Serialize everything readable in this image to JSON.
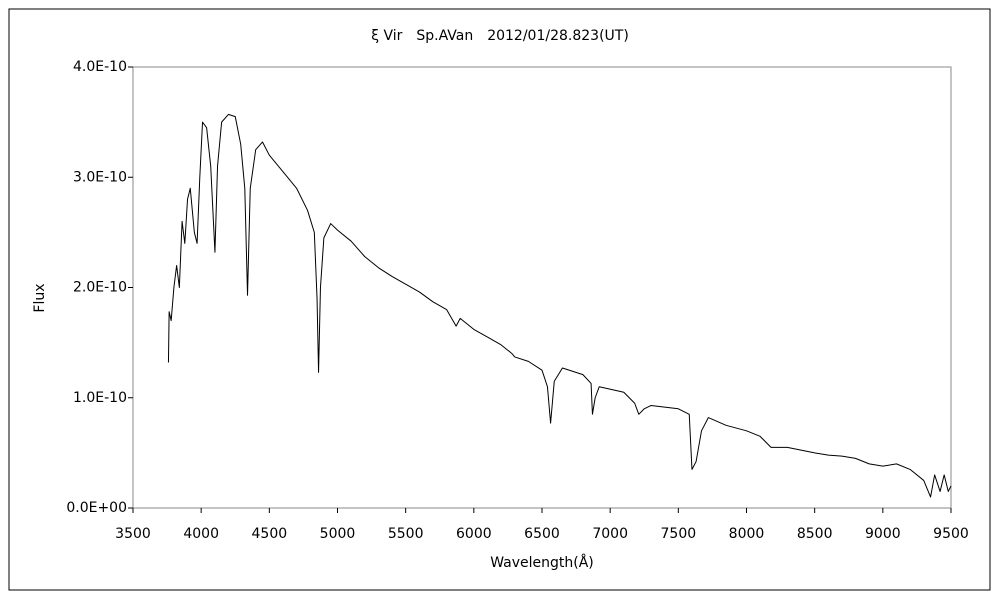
{
  "chart_data": {
    "type": "line",
    "title": "ξ Vir　Sp.AVan　2012/01/28.823(UT)",
    "x_label": "Wavelength(Å)",
    "y_label": "Flux",
    "xlim": [
      3500,
      9500
    ],
    "xticks": [
      3500,
      4000,
      4500,
      5000,
      5500,
      6000,
      6500,
      7000,
      7500,
      8000,
      8500,
      9000,
      9500
    ],
    "ylim": [
      0,
      4e-10
    ],
    "yticks": [
      {
        "value": 0,
        "label": "0.0E+00"
      },
      {
        "value": 1e-10,
        "label": "1.0E-10"
      },
      {
        "value": 2e-10,
        "label": "2.0E-10"
      },
      {
        "value": 3e-10,
        "label": "3.0E-10"
      },
      {
        "value": 4e-10,
        "label": "4.0E-10"
      }
    ],
    "grid": false,
    "series": [
      {
        "name": "Flux",
        "color": "#000000",
        "x": [
          3760,
          3765,
          3780,
          3800,
          3820,
          3840,
          3860,
          3880,
          3900,
          3920,
          3950,
          3970,
          3990,
          4010,
          4040,
          4070,
          4101,
          4120,
          4150,
          4200,
          4250,
          4290,
          4320,
          4340,
          4360,
          4400,
          4450,
          4500,
          4600,
          4700,
          4780,
          4830,
          4850,
          4861,
          4875,
          4900,
          4950,
          5000,
          5100,
          5200,
          5300,
          5400,
          5500,
          5600,
          5700,
          5800,
          5870,
          5900,
          6000,
          6100,
          6200,
          6280,
          6300,
          6400,
          6500,
          6540,
          6563,
          6590,
          6650,
          6800,
          6860,
          6870,
          6890,
          6920,
          7100,
          7180,
          7210,
          7250,
          7300,
          7500,
          7580,
          7600,
          7630,
          7670,
          7720,
          7850,
          8000,
          8100,
          8180,
          8300,
          8500,
          8600,
          8700,
          8800,
          8900,
          9000,
          9100,
          9200,
          9300,
          9350,
          9380,
          9420,
          9450,
          9480,
          9500
        ],
        "values": [
          1.32e-10,
          1.78e-10,
          1.7e-10,
          2e-10,
          2.2e-10,
          2e-10,
          2.6e-10,
          2.4e-10,
          2.8e-10,
          2.9e-10,
          2.5e-10,
          2.4e-10,
          3e-10,
          3.5e-10,
          3.45e-10,
          3.1e-10,
          2.32e-10,
          3.1e-10,
          3.5e-10,
          3.57e-10,
          3.55e-10,
          3.3e-10,
          2.9e-10,
          1.93e-10,
          2.9e-10,
          3.25e-10,
          3.32e-10,
          3.2e-10,
          3.05e-10,
          2.9e-10,
          2.7e-10,
          2.5e-10,
          1.9e-10,
          1.23e-10,
          2e-10,
          2.45e-10,
          2.58e-10,
          2.52e-10,
          2.42e-10,
          2.28e-10,
          2.18e-10,
          2.1e-10,
          2.03e-10,
          1.96e-10,
          1.87e-10,
          1.8e-10,
          1.65e-10,
          1.72e-10,
          1.62e-10,
          1.55e-10,
          1.48e-10,
          1.4e-10,
          1.37e-10,
          1.33e-10,
          1.25e-10,
          1.1e-10,
          7.7e-11,
          1.15e-10,
          1.27e-10,
          1.21e-10,
          1.13e-10,
          8.5e-11,
          1e-10,
          1.1e-10,
          1.05e-10,
          9.5e-11,
          8.5e-11,
          9e-11,
          9.3e-11,
          9e-11,
          8.5e-11,
          3.5e-11,
          4.2e-11,
          7e-11,
          8.2e-11,
          7.5e-11,
          7e-11,
          6.5e-11,
          5.5e-11,
          5.5e-11,
          5e-11,
          4.8e-11,
          4.7e-11,
          4.5e-11,
          4e-11,
          3.8e-11,
          4e-11,
          3.5e-11,
          2.5e-11,
          1e-11,
          3e-11,
          1.5e-11,
          3e-11,
          1.5e-11,
          2e-11
        ]
      }
    ]
  }
}
